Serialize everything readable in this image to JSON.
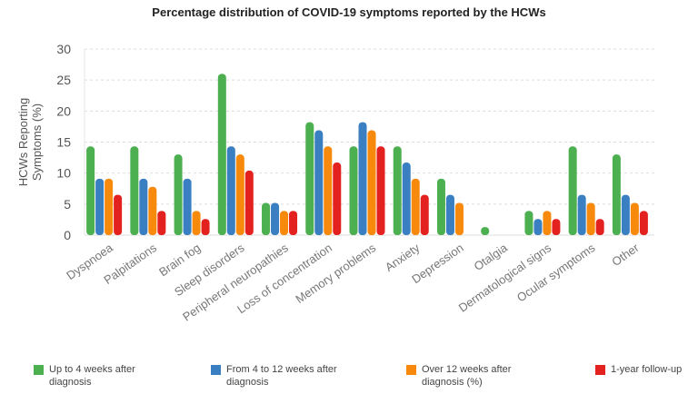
{
  "chart_data": {
    "type": "bar",
    "title": "Percentage distribution of COVID-19 symptoms reported by the HCWs",
    "xlabel": "",
    "ylabel": "HCWs Reporting Symptoms (%)",
    "ylim": [
      0,
      30
    ],
    "yticks": [
      0,
      5,
      10,
      15,
      20,
      25,
      30
    ],
    "grid": true,
    "legend_position": "bottom",
    "categories": [
      "Dyspnoea",
      "Palpitations",
      "Brain fog",
      "Sleep disorders",
      "Peripheral neuropathies",
      "Loss of concentration",
      "Memory problems",
      "Anxiety",
      "Depression",
      "Otalgia",
      "Dermatological signs",
      "Ocular symptoms",
      "Other"
    ],
    "series": [
      {
        "name": "Up to 4 weeks after diagnosis",
        "color": "#4caf50",
        "values": [
          14.3,
          14.3,
          13,
          26,
          5.2,
          18.2,
          14.3,
          14.3,
          9.1,
          1.3,
          3.9,
          14.3,
          13
        ]
      },
      {
        "name": "From 4 to 12 weeks after diagnosis",
        "color": "#3a7fc1",
        "values": [
          9.1,
          9.1,
          9.1,
          14.3,
          5.2,
          16.9,
          18.2,
          11.7,
          6.5,
          0,
          2.6,
          6.5,
          6.5
        ]
      },
      {
        "name": "Over 12 weeks after diagnosis (%)",
        "color": "#f7890c",
        "values": [
          9.1,
          7.8,
          3.9,
          13,
          3.9,
          14.3,
          16.9,
          9.1,
          5.2,
          0,
          3.9,
          5.2,
          5.2
        ]
      },
      {
        "name": "1-year follow-up",
        "color": "#e3211f",
        "values": [
          6.5,
          3.9,
          2.6,
          10.4,
          3.9,
          11.7,
          14.3,
          6.5,
          0,
          0,
          2.6,
          2.6,
          3.9
        ]
      }
    ]
  }
}
